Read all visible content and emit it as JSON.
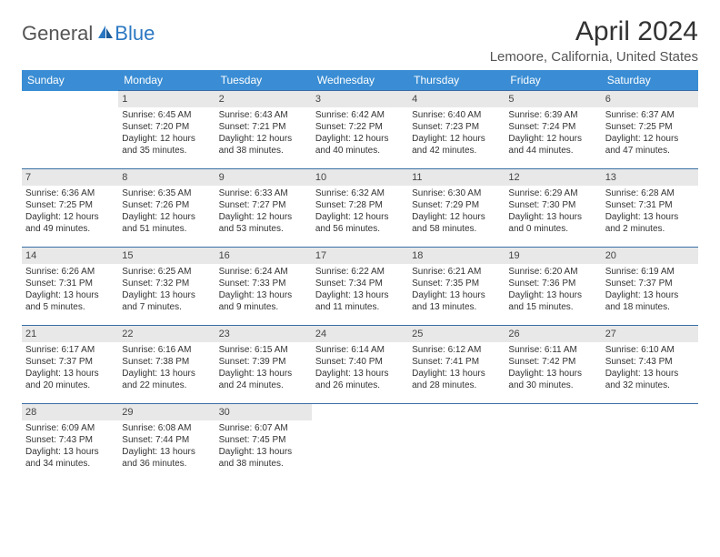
{
  "brand": {
    "part1": "General",
    "part2": "Blue"
  },
  "title": "April 2024",
  "location": "Lemoore, California, United States",
  "colors": {
    "header_bg": "#3a8dd4",
    "header_fg": "#ffffff",
    "row_border": "#3a6ea5",
    "daynum_bg": "#e8e8e8",
    "brand_blue": "#2b78c2",
    "brand_gray": "#555555"
  },
  "weekdays": [
    "Sunday",
    "Monday",
    "Tuesday",
    "Wednesday",
    "Thursday",
    "Friday",
    "Saturday"
  ],
  "weeks": [
    [
      null,
      {
        "n": "1",
        "sr": "Sunrise: 6:45 AM",
        "ss": "Sunset: 7:20 PM",
        "d1": "Daylight: 12 hours",
        "d2": "and 35 minutes."
      },
      {
        "n": "2",
        "sr": "Sunrise: 6:43 AM",
        "ss": "Sunset: 7:21 PM",
        "d1": "Daylight: 12 hours",
        "d2": "and 38 minutes."
      },
      {
        "n": "3",
        "sr": "Sunrise: 6:42 AM",
        "ss": "Sunset: 7:22 PM",
        "d1": "Daylight: 12 hours",
        "d2": "and 40 minutes."
      },
      {
        "n": "4",
        "sr": "Sunrise: 6:40 AM",
        "ss": "Sunset: 7:23 PM",
        "d1": "Daylight: 12 hours",
        "d2": "and 42 minutes."
      },
      {
        "n": "5",
        "sr": "Sunrise: 6:39 AM",
        "ss": "Sunset: 7:24 PM",
        "d1": "Daylight: 12 hours",
        "d2": "and 44 minutes."
      },
      {
        "n": "6",
        "sr": "Sunrise: 6:37 AM",
        "ss": "Sunset: 7:25 PM",
        "d1": "Daylight: 12 hours",
        "d2": "and 47 minutes."
      }
    ],
    [
      {
        "n": "7",
        "sr": "Sunrise: 6:36 AM",
        "ss": "Sunset: 7:25 PM",
        "d1": "Daylight: 12 hours",
        "d2": "and 49 minutes."
      },
      {
        "n": "8",
        "sr": "Sunrise: 6:35 AM",
        "ss": "Sunset: 7:26 PM",
        "d1": "Daylight: 12 hours",
        "d2": "and 51 minutes."
      },
      {
        "n": "9",
        "sr": "Sunrise: 6:33 AM",
        "ss": "Sunset: 7:27 PM",
        "d1": "Daylight: 12 hours",
        "d2": "and 53 minutes."
      },
      {
        "n": "10",
        "sr": "Sunrise: 6:32 AM",
        "ss": "Sunset: 7:28 PM",
        "d1": "Daylight: 12 hours",
        "d2": "and 56 minutes."
      },
      {
        "n": "11",
        "sr": "Sunrise: 6:30 AM",
        "ss": "Sunset: 7:29 PM",
        "d1": "Daylight: 12 hours",
        "d2": "and 58 minutes."
      },
      {
        "n": "12",
        "sr": "Sunrise: 6:29 AM",
        "ss": "Sunset: 7:30 PM",
        "d1": "Daylight: 13 hours",
        "d2": "and 0 minutes."
      },
      {
        "n": "13",
        "sr": "Sunrise: 6:28 AM",
        "ss": "Sunset: 7:31 PM",
        "d1": "Daylight: 13 hours",
        "d2": "and 2 minutes."
      }
    ],
    [
      {
        "n": "14",
        "sr": "Sunrise: 6:26 AM",
        "ss": "Sunset: 7:31 PM",
        "d1": "Daylight: 13 hours",
        "d2": "and 5 minutes."
      },
      {
        "n": "15",
        "sr": "Sunrise: 6:25 AM",
        "ss": "Sunset: 7:32 PM",
        "d1": "Daylight: 13 hours",
        "d2": "and 7 minutes."
      },
      {
        "n": "16",
        "sr": "Sunrise: 6:24 AM",
        "ss": "Sunset: 7:33 PM",
        "d1": "Daylight: 13 hours",
        "d2": "and 9 minutes."
      },
      {
        "n": "17",
        "sr": "Sunrise: 6:22 AM",
        "ss": "Sunset: 7:34 PM",
        "d1": "Daylight: 13 hours",
        "d2": "and 11 minutes."
      },
      {
        "n": "18",
        "sr": "Sunrise: 6:21 AM",
        "ss": "Sunset: 7:35 PM",
        "d1": "Daylight: 13 hours",
        "d2": "and 13 minutes."
      },
      {
        "n": "19",
        "sr": "Sunrise: 6:20 AM",
        "ss": "Sunset: 7:36 PM",
        "d1": "Daylight: 13 hours",
        "d2": "and 15 minutes."
      },
      {
        "n": "20",
        "sr": "Sunrise: 6:19 AM",
        "ss": "Sunset: 7:37 PM",
        "d1": "Daylight: 13 hours",
        "d2": "and 18 minutes."
      }
    ],
    [
      {
        "n": "21",
        "sr": "Sunrise: 6:17 AM",
        "ss": "Sunset: 7:37 PM",
        "d1": "Daylight: 13 hours",
        "d2": "and 20 minutes."
      },
      {
        "n": "22",
        "sr": "Sunrise: 6:16 AM",
        "ss": "Sunset: 7:38 PM",
        "d1": "Daylight: 13 hours",
        "d2": "and 22 minutes."
      },
      {
        "n": "23",
        "sr": "Sunrise: 6:15 AM",
        "ss": "Sunset: 7:39 PM",
        "d1": "Daylight: 13 hours",
        "d2": "and 24 minutes."
      },
      {
        "n": "24",
        "sr": "Sunrise: 6:14 AM",
        "ss": "Sunset: 7:40 PM",
        "d1": "Daylight: 13 hours",
        "d2": "and 26 minutes."
      },
      {
        "n": "25",
        "sr": "Sunrise: 6:12 AM",
        "ss": "Sunset: 7:41 PM",
        "d1": "Daylight: 13 hours",
        "d2": "and 28 minutes."
      },
      {
        "n": "26",
        "sr": "Sunrise: 6:11 AM",
        "ss": "Sunset: 7:42 PM",
        "d1": "Daylight: 13 hours",
        "d2": "and 30 minutes."
      },
      {
        "n": "27",
        "sr": "Sunrise: 6:10 AM",
        "ss": "Sunset: 7:43 PM",
        "d1": "Daylight: 13 hours",
        "d2": "and 32 minutes."
      }
    ],
    [
      {
        "n": "28",
        "sr": "Sunrise: 6:09 AM",
        "ss": "Sunset: 7:43 PM",
        "d1": "Daylight: 13 hours",
        "d2": "and 34 minutes."
      },
      {
        "n": "29",
        "sr": "Sunrise: 6:08 AM",
        "ss": "Sunset: 7:44 PM",
        "d1": "Daylight: 13 hours",
        "d2": "and 36 minutes."
      },
      {
        "n": "30",
        "sr": "Sunrise: 6:07 AM",
        "ss": "Sunset: 7:45 PM",
        "d1": "Daylight: 13 hours",
        "d2": "and 38 minutes."
      },
      null,
      null,
      null,
      null
    ]
  ]
}
